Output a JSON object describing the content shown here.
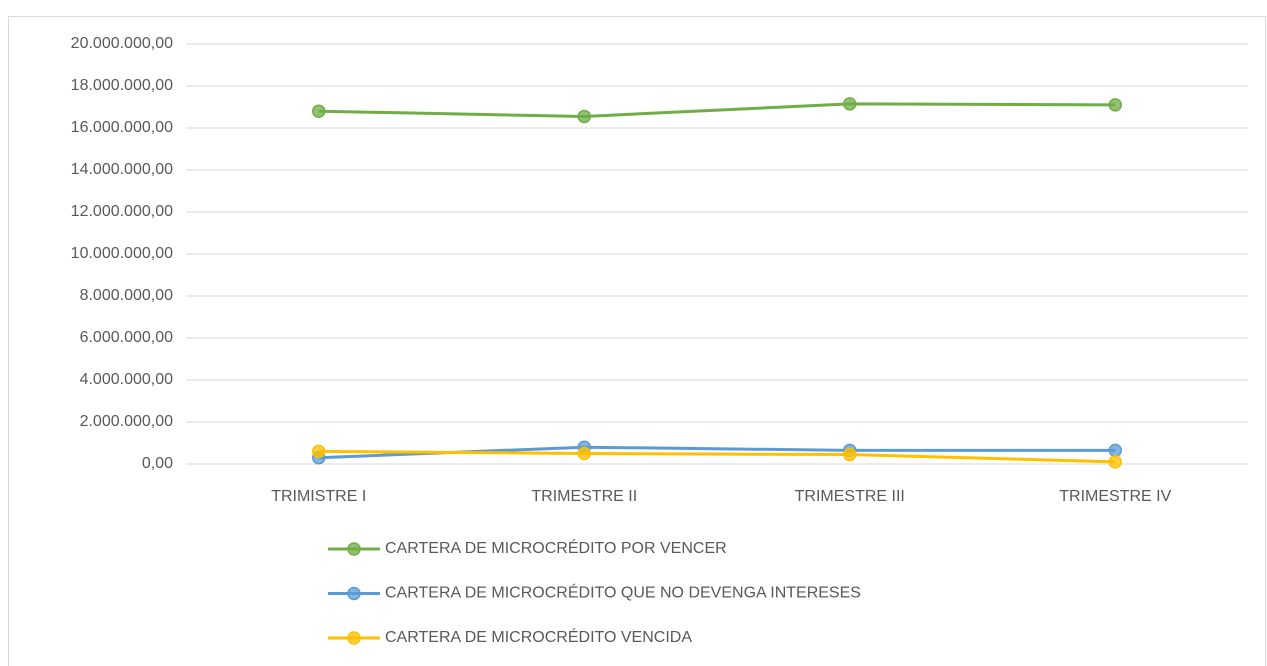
{
  "chart_data": {
    "type": "line",
    "categories": [
      "TRIMISTRE I",
      "TRIMESTRE II",
      "TRIMESTRE III",
      "TRIMESTRE IV"
    ],
    "series": [
      {
        "name": "CARTERA DE MICROCRÉDITO POR VENCER",
        "color": "#70ad47",
        "values": [
          16800000,
          16550000,
          17150000,
          17100000
        ]
      },
      {
        "name": "CARTERA DE MICROCRÉDITO QUE NO DEVENGA INTERESES",
        "color": "#5b9bd5",
        "values": [
          300000,
          800000,
          650000,
          650000
        ]
      },
      {
        "name": "CARTERA DE MICROCRÉDITO VENCIDA",
        "color": "#ffc000",
        "values": [
          600000,
          500000,
          450000,
          100000
        ]
      }
    ],
    "ylim": [
      0,
      20000000
    ],
    "yticks": [
      {
        "value": 0,
        "label": "0,00"
      },
      {
        "value": 2000000,
        "label": "2.000.000,00"
      },
      {
        "value": 4000000,
        "label": "4.000.000,00"
      },
      {
        "value": 6000000,
        "label": "6.000.000,00"
      },
      {
        "value": 8000000,
        "label": "8.000.000,00"
      },
      {
        "value": 10000000,
        "label": "10.000.000,00"
      },
      {
        "value": 12000000,
        "label": "12.000.000,00"
      },
      {
        "value": 14000000,
        "label": "14.000.000,00"
      },
      {
        "value": 16000000,
        "label": "16.000.000,00"
      },
      {
        "value": 18000000,
        "label": "18.000.000,00"
      },
      {
        "value": 20000000,
        "label": "20.000.000,00"
      }
    ],
    "grid": true,
    "legend": "bottom"
  }
}
